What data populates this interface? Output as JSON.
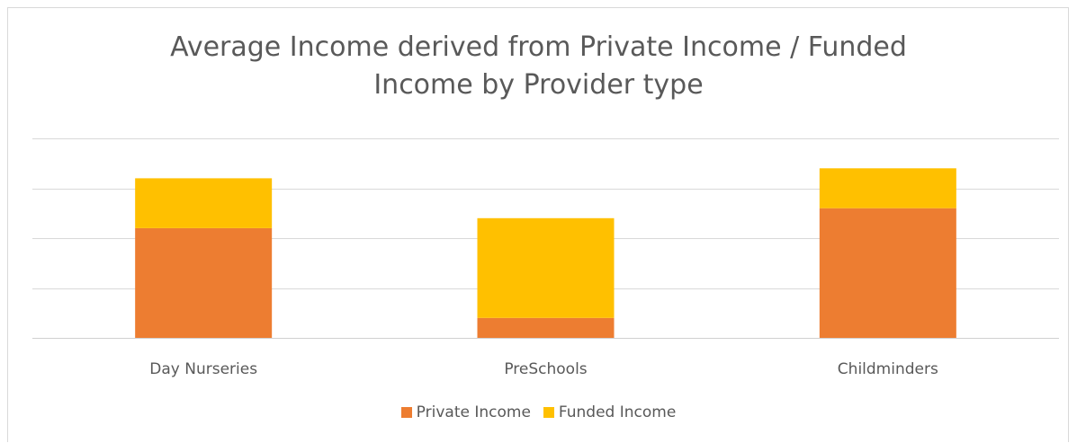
{
  "chart_data": {
    "type": "bar",
    "stacked": true,
    "title": "Average Income derived from Private Income / Funded Income by Provider type",
    "title_lines": [
      "Average Income derived from Private Income / Funded",
      "Income by Provider type"
    ],
    "xlabel": "",
    "ylabel": "",
    "categories": [
      "Day Nurseries",
      "PreSchools",
      "Childminders"
    ],
    "series": [
      {
        "name": "Private Income",
        "color": "#ED7D31",
        "values": [
          2.2,
          0.4,
          2.6
        ]
      },
      {
        "name": "Funded Income",
        "color": "#FFC000",
        "values": [
          1.0,
          2.0,
          0.8
        ]
      }
    ],
    "ylim": [
      0,
      4
    ],
    "gridlines": [
      0,
      1,
      2,
      3,
      4
    ],
    "y_tick_labels_shown": false,
    "grid": true,
    "legend_position": "bottom"
  }
}
